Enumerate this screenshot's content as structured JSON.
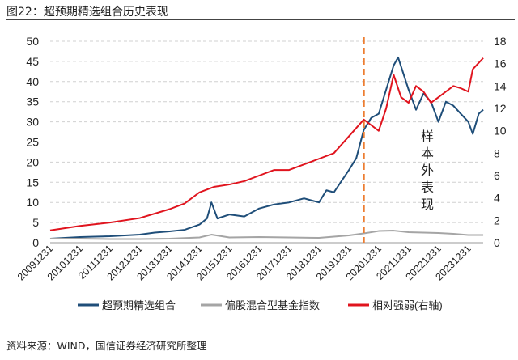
{
  "title": "图22：超预期精选组合历史表现",
  "source": "资料来源：WIND，国信证券经济研究所整理",
  "chart_data": {
    "type": "line",
    "ylim_left": [
      0,
      50
    ],
    "ylim_right": [
      0,
      18
    ],
    "yticks_left": [
      "0",
      "5",
      "10",
      "15",
      "20",
      "25",
      "30",
      "35",
      "40",
      "45",
      "50"
    ],
    "yticks_right": [
      "0",
      "2",
      "4",
      "6",
      "8",
      "10",
      "12",
      "14",
      "16",
      "18"
    ],
    "xticks": [
      "20091231",
      "20101231",
      "20111231",
      "20121231",
      "20131231",
      "20141231",
      "20151231",
      "20161231",
      "20171231",
      "20181231",
      "20191231",
      "20201231",
      "20211231",
      "20221231",
      "20231231"
    ],
    "grid": "horizontal dashed",
    "legend_position": "bottom",
    "divider_date": 2020.5,
    "divider_color": "#ED7D31",
    "annotation": "样本外表现",
    "series": [
      {
        "name": "超预期精选组合",
        "axis": "left",
        "color": "#1F4E79",
        "x": [
          2010.0,
          2010.5,
          2011.0,
          2011.5,
          2012.0,
          2012.5,
          2013.0,
          2013.5,
          2014.0,
          2014.5,
          2015.0,
          2015.25,
          2015.4,
          2015.6,
          2016.0,
          2016.5,
          2017.0,
          2017.5,
          2018.0,
          2018.5,
          2019.0,
          2019.25,
          2019.5,
          2020.0,
          2020.25,
          2020.5,
          2020.75,
          2021.0,
          2021.25,
          2021.5,
          2021.65,
          2022.0,
          2022.25,
          2022.5,
          2022.75,
          2023.0,
          2023.25,
          2023.5,
          2023.75,
          2024.0,
          2024.15,
          2024.35,
          2024.5
        ],
        "values": [
          1.0,
          1.2,
          1.4,
          1.5,
          1.6,
          1.8,
          2.0,
          2.5,
          2.8,
          3.2,
          4.5,
          6,
          10,
          6,
          7,
          6.5,
          8.5,
          9.5,
          10,
          11,
          10,
          13,
          12.5,
          18,
          21,
          28,
          31,
          32,
          38,
          44,
          46,
          38,
          33,
          37,
          35,
          30,
          35,
          34,
          32,
          30,
          27,
          32,
          33
        ]
      },
      {
        "name": "偏股混合型基金指数",
        "axis": "left",
        "color": "#A5A5A5",
        "x": [
          2010.0,
          2011.0,
          2012.0,
          2013.0,
          2014.0,
          2015.0,
          2015.4,
          2016.0,
          2017.0,
          2018.0,
          2019.0,
          2020.0,
          2020.5,
          2021.0,
          2021.5,
          2022.0,
          2022.5,
          2023.0,
          2023.5,
          2024.0,
          2024.5
        ],
        "values": [
          1.0,
          1.0,
          0.9,
          0.9,
          1.0,
          1.3,
          2.0,
          1.3,
          1.4,
          1.3,
          1.2,
          1.8,
          2.3,
          2.9,
          3.0,
          2.6,
          2.5,
          2.4,
          2.2,
          1.9,
          1.9
        ]
      },
      {
        "name": "相对强弱(右轴)",
        "axis": "right",
        "color": "#E0141E",
        "x": [
          2010.0,
          2011.0,
          2012.0,
          2013.0,
          2014.0,
          2014.5,
          2015.0,
          2015.5,
          2016.0,
          2016.5,
          2017.0,
          2017.5,
          2018.0,
          2018.5,
          2019.0,
          2019.5,
          2020.0,
          2020.5,
          2020.75,
          2021.0,
          2021.25,
          2021.5,
          2021.75,
          2022.0,
          2022.25,
          2022.5,
          2022.75,
          2023.0,
          2023.25,
          2023.5,
          2023.75,
          2024.0,
          2024.15,
          2024.5
        ],
        "values": [
          1.1,
          1.5,
          1.8,
          2.2,
          3.0,
          3.5,
          4.5,
          5.0,
          5.2,
          5.5,
          6.0,
          6.5,
          6.5,
          7.0,
          7.5,
          8.0,
          9.5,
          11,
          10.5,
          10,
          12,
          15,
          13,
          12.5,
          14,
          13.5,
          12.5,
          13,
          13.5,
          14,
          13.8,
          13.5,
          15.5,
          16.5
        ]
      }
    ]
  }
}
